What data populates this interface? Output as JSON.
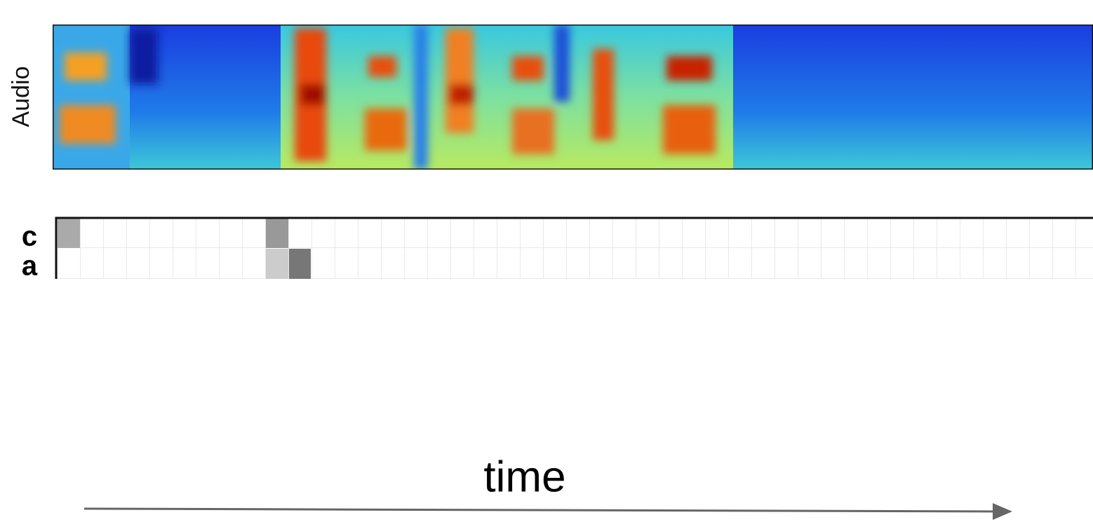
{
  "panels": {
    "audio_label": "Audio"
  },
  "alignment": {
    "rows": [
      "c",
      "a"
    ]
  },
  "axis": {
    "label": "time"
  }
}
